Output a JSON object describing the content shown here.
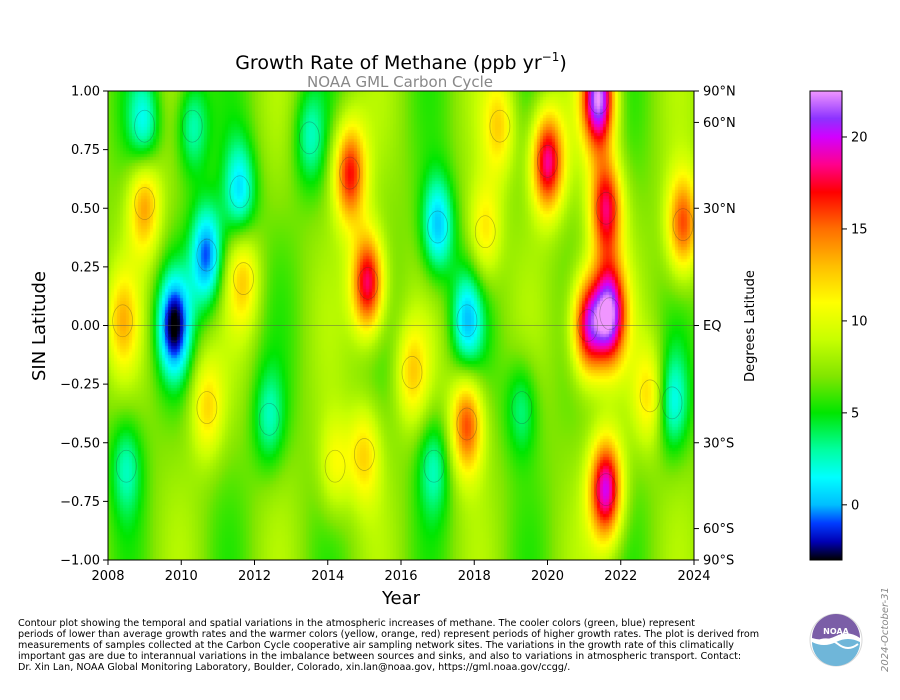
{
  "chart_data": {
    "type": "heatmap",
    "title": "Growth Rate of Methane (ppb yr",
    "title_superscript": "−1",
    "title_suffix": ")",
    "subtitle": "NOAA GML Carbon Cycle",
    "xlabel": "Year",
    "ylabel": "SIN Latitude",
    "ylabel_right": "Degrees Latitude",
    "xlim": [
      2008,
      2024
    ],
    "ylim": [
      -1.0,
      1.0
    ],
    "x_ticks": [
      "2008",
      "2010",
      "2012",
      "2014",
      "2016",
      "2018",
      "2020",
      "2022",
      "2024"
    ],
    "x_tick_values": [
      2008,
      2010,
      2012,
      2014,
      2016,
      2018,
      2020,
      2022,
      2024
    ],
    "y_ticks": [
      "−1.00",
      "−0.75",
      "−0.50",
      "−0.25",
      "0.00",
      "0.25",
      "0.50",
      "0.75",
      "1.00"
    ],
    "y_tick_values": [
      -1.0,
      -0.75,
      -0.5,
      -0.25,
      0.0,
      0.25,
      0.5,
      0.75,
      1.0
    ],
    "right_ticks": [
      "90°N",
      "60°N",
      "30°N",
      "EQ",
      "30°S",
      "60°S",
      "90°S"
    ],
    "right_tick_values": [
      1.0,
      0.866,
      0.5,
      0.0,
      -0.5,
      -0.866,
      -1.0
    ],
    "colorbar": {
      "range": [
        -3,
        22.5
      ],
      "ticks": [
        "0",
        "5",
        "10",
        "15",
        "20"
      ],
      "tick_values": [
        0,
        5,
        10,
        15,
        20
      ]
    },
    "zero_line": 0.0,
    "base_value": 7,
    "features": [
      {
        "year": 2014.6,
        "lat": 0.65,
        "value": 17
      },
      {
        "year": 2015.1,
        "lat": 0.18,
        "value": 19
      },
      {
        "year": 2015.0,
        "lat": -0.55,
        "value": 12
      },
      {
        "year": 2009.8,
        "lat": 0.0,
        "value": -2
      },
      {
        "year": 2010.7,
        "lat": 0.3,
        "value": -1
      },
      {
        "year": 2011.6,
        "lat": 0.57,
        "value": 1
      },
      {
        "year": 2017.0,
        "lat": 0.42,
        "value": 0
      },
      {
        "year": 2017.8,
        "lat": 0.02,
        "value": 1
      },
      {
        "year": 2017.8,
        "lat": -0.42,
        "value": 16
      },
      {
        "year": 2018.3,
        "lat": 0.4,
        "value": 12
      },
      {
        "year": 2020.0,
        "lat": 0.7,
        "value": 19
      },
      {
        "year": 2021.1,
        "lat": 0.0,
        "value": 19
      },
      {
        "year": 2021.6,
        "lat": 0.5,
        "value": 18
      },
      {
        "year": 2021.7,
        "lat": 0.05,
        "value": 21
      },
      {
        "year": 2021.4,
        "lat": 0.97,
        "value": 22
      },
      {
        "year": 2021.6,
        "lat": -0.7,
        "value": 20
      },
      {
        "year": 2023.7,
        "lat": 0.43,
        "value": 16
      },
      {
        "year": 2023.4,
        "lat": -0.33,
        "value": 2
      },
      {
        "year": 2010.7,
        "lat": -0.35,
        "value": 12
      },
      {
        "year": 2009.0,
        "lat": 0.52,
        "value": 14
      },
      {
        "year": 2008.4,
        "lat": 0.02,
        "value": 12
      },
      {
        "year": 2011.7,
        "lat": 0.2,
        "value": 12
      },
      {
        "year": 2008.5,
        "lat": -0.6,
        "value": 3
      },
      {
        "year": 2012.4,
        "lat": -0.4,
        "value": 3
      },
      {
        "year": 2009.0,
        "lat": 0.85,
        "value": 2
      },
      {
        "year": 2010.3,
        "lat": 0.85,
        "value": 2
      },
      {
        "year": 2016.3,
        "lat": -0.2,
        "value": 12
      },
      {
        "year": 2016.9,
        "lat": -0.6,
        "value": 3
      },
      {
        "year": 2019.3,
        "lat": -0.35,
        "value": 3
      },
      {
        "year": 2018.7,
        "lat": 0.85,
        "value": 12
      },
      {
        "year": 2022.8,
        "lat": -0.3,
        "value": 12
      },
      {
        "year": 2014.2,
        "lat": -0.6,
        "value": 11
      },
      {
        "year": 2013.5,
        "lat": 0.8,
        "value": 3
      }
    ]
  },
  "caption": {
    "line1": "Contour plot showing the temporal and spatial variations in the atmospheric increases of methane.  The cooler colors (green, blue) represent",
    "line2": "periods of lower than average growth rates and the warmer colors (yellow, orange, red) represent periods of higher growth rates.  The plot is derived from",
    "line3": "measurements of samples collected at the Carbon Cycle cooperative air sampling network sites.  The variations in the growth rate of this climatically",
    "line4": "important gas are due to interannual variations in the imbalance between sources and sinks, and also to variations in atmospheric transport.  Contact:",
    "line5": "Dr. Xin Lan, NOAA Global Monitoring Laboratory, Boulder, Colorado, xin.lan@noaa.gov, https://gml.noaa.gov/ccgg/."
  },
  "datestamp": "2024-October-31",
  "logo": {
    "text": "NOAA",
    "colors": {
      "top": "#7b5ea7",
      "bottom": "#6fb6d9"
    }
  }
}
